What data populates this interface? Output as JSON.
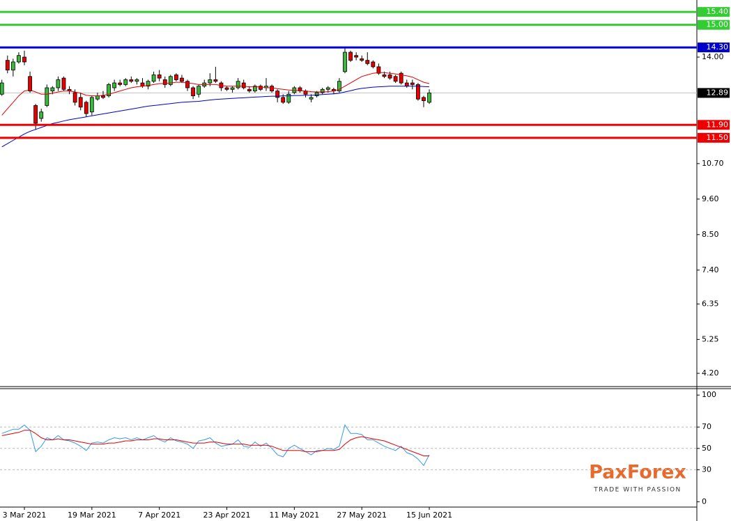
{
  "chart_data": [
    {
      "type": "candlestick",
      "categories": [
        null,
        null,
        null,
        null,
        "3 Mar 2021",
        null,
        null,
        null,
        null,
        null,
        null,
        null,
        null,
        null,
        null,
        null,
        "19 Mar 2021",
        null,
        null,
        null,
        null,
        null,
        null,
        null,
        null,
        null,
        null,
        null,
        "7 Apr 2021",
        null,
        null,
        null,
        null,
        null,
        null,
        null,
        null,
        null,
        null,
        null,
        "23 Apr 2021",
        null,
        null,
        null,
        null,
        null,
        null,
        null,
        null,
        null,
        null,
        null,
        "11 May 2021",
        null,
        null,
        null,
        null,
        null,
        null,
        null,
        null,
        null,
        null,
        null,
        "27 May 2021",
        null,
        null,
        null,
        null,
        null,
        null,
        null,
        null,
        null,
        null,
        null,
        "15 Jun 2021"
      ],
      "open": [
        12.85,
        13.9,
        13.6,
        13.85,
        14.0,
        13.4,
        12.5,
        12.1,
        12.5,
        12.95,
        13.05,
        13.35,
        13.0,
        12.9,
        12.75,
        12.6,
        12.3,
        12.7,
        12.8,
        12.8,
        13.05,
        13.2,
        13.15,
        13.3,
        13.25,
        13.2,
        13.1,
        13.25,
        13.45,
        13.3,
        13.15,
        13.45,
        13.35,
        13.25,
        13.05,
        12.85,
        13.1,
        13.2,
        13.3,
        13.2,
        13.05,
        13.0,
        13.05,
        13.2,
        13.0,
        12.95,
        13.1,
        13.05,
        13.1,
        12.95,
        12.75,
        12.6,
        12.9,
        13.05,
        12.95,
        12.7,
        12.8,
        12.9,
        13.0,
        13.0,
        12.95,
        13.55,
        14.15,
        14.05,
        13.95,
        13.9,
        13.85,
        13.7,
        13.45,
        13.45,
        13.4,
        13.5,
        13.2,
        13.2,
        13.15,
        12.75,
        12.6
      ],
      "high": [
        13.3,
        14.05,
        13.95,
        14.15,
        14.2,
        13.55,
        12.55,
        12.4,
        13.15,
        13.1,
        13.4,
        13.4,
        13.1,
        13.0,
        12.9,
        12.65,
        12.8,
        12.9,
        12.95,
        13.2,
        13.3,
        13.3,
        13.35,
        13.4,
        13.35,
        13.35,
        13.3,
        13.55,
        13.6,
        13.4,
        13.45,
        13.5,
        13.45,
        13.3,
        13.1,
        13.15,
        13.3,
        13.5,
        13.7,
        13.25,
        13.1,
        13.1,
        13.35,
        13.3,
        13.1,
        13.15,
        13.15,
        13.35,
        13.15,
        13.0,
        12.85,
        12.95,
        13.1,
        13.1,
        13.0,
        12.85,
        12.95,
        13.05,
        13.1,
        13.05,
        13.35,
        14.3,
        14.2,
        14.15,
        14.05,
        14.15,
        13.9,
        13.8,
        13.55,
        13.55,
        13.45,
        13.55,
        13.3,
        13.3,
        13.2,
        12.8,
        13.0
      ],
      "low": [
        12.8,
        13.5,
        13.4,
        13.8,
        13.75,
        12.9,
        11.75,
        12.0,
        12.45,
        12.85,
        12.95,
        12.95,
        12.85,
        12.5,
        12.35,
        12.15,
        12.2,
        12.65,
        12.7,
        12.75,
        12.95,
        13.1,
        13.1,
        13.2,
        13.15,
        13.05,
        13.0,
        13.2,
        13.25,
        13.05,
        13.1,
        13.25,
        13.2,
        12.95,
        12.7,
        12.75,
        13.05,
        13.1,
        13.2,
        12.95,
        12.95,
        12.9,
        13.0,
        13.0,
        12.9,
        12.9,
        12.95,
        12.95,
        12.9,
        12.6,
        12.55,
        12.55,
        12.85,
        12.9,
        12.75,
        12.6,
        12.75,
        12.85,
        12.9,
        12.85,
        12.9,
        13.5,
        13.85,
        13.9,
        13.85,
        13.75,
        13.65,
        13.45,
        13.35,
        13.3,
        13.2,
        13.15,
        13.05,
        13.0,
        12.65,
        12.45,
        12.55
      ],
      "close": [
        13.2,
        13.6,
        13.85,
        14.05,
        13.85,
        12.95,
        11.95,
        12.3,
        13.05,
        13.05,
        13.3,
        13.0,
        12.95,
        12.6,
        12.45,
        12.25,
        12.75,
        12.8,
        12.75,
        13.15,
        13.2,
        13.15,
        13.3,
        13.25,
        13.3,
        13.1,
        13.25,
        13.45,
        13.35,
        13.15,
        13.4,
        13.3,
        13.25,
        13.05,
        12.8,
        13.1,
        13.2,
        13.3,
        13.25,
        13.05,
        13.0,
        13.05,
        13.25,
        13.05,
        12.95,
        13.1,
        13.0,
        13.1,
        12.95,
        12.75,
        12.6,
        12.85,
        13.05,
        12.95,
        12.85,
        12.75,
        12.9,
        13.0,
        13.05,
        12.95,
        13.25,
        14.15,
        13.9,
        14.0,
        13.9,
        13.8,
        13.7,
        13.5,
        13.4,
        13.35,
        13.25,
        13.2,
        13.1,
        13.15,
        12.7,
        12.65,
        12.89
      ],
      "up_color": "#3cb83c",
      "down_color": "#e60000",
      "series": [
        {
          "color": "#e00000",
          "values": [
            12.2,
            12.4,
            12.6,
            12.8,
            12.95,
            12.98,
            12.92,
            12.85,
            12.85,
            12.88,
            12.92,
            12.95,
            12.95,
            12.92,
            12.88,
            12.82,
            12.8,
            12.8,
            12.82,
            12.85,
            12.9,
            12.95,
            13.0,
            13.05,
            13.08,
            13.1,
            13.12,
            13.15,
            13.18,
            13.18,
            13.2,
            13.22,
            13.22,
            13.2,
            13.18,
            13.15,
            13.15,
            13.15,
            13.15,
            13.12,
            13.1,
            13.1,
            13.1,
            13.1,
            13.08,
            13.08,
            13.08,
            13.05,
            13.05,
            13.02,
            13.0,
            12.98,
            12.97,
            12.96,
            12.95,
            12.93,
            12.92,
            12.92,
            12.93,
            12.95,
            13.0,
            13.1,
            13.2,
            13.3,
            13.4,
            13.45,
            13.5,
            13.52,
            13.52,
            13.5,
            13.48,
            13.45,
            13.42,
            13.38,
            13.3,
            13.22,
            13.18
          ]
        },
        {
          "color": "#0000c8",
          "values": [
            11.22,
            11.32,
            11.42,
            11.52,
            11.62,
            11.7,
            11.76,
            11.82,
            11.88,
            11.94,
            11.98,
            12.02,
            12.06,
            12.09,
            12.12,
            12.15,
            12.18,
            12.21,
            12.24,
            12.27,
            12.3,
            12.33,
            12.36,
            12.39,
            12.42,
            12.45,
            12.48,
            12.5,
            12.52,
            12.54,
            12.56,
            12.58,
            12.6,
            12.61,
            12.62,
            12.63,
            12.65,
            12.67,
            12.69,
            12.7,
            12.71,
            12.72,
            12.73,
            12.74,
            12.75,
            12.76,
            12.77,
            12.78,
            12.79,
            12.79,
            12.8,
            12.8,
            12.81,
            12.81,
            12.82,
            12.82,
            12.83,
            12.84,
            12.85,
            12.86,
            12.88,
            12.92,
            12.96,
            13.0,
            13.03,
            13.05,
            13.07,
            13.08,
            13.09,
            13.1,
            13.1,
            13.1,
            13.1,
            13.1,
            13.1,
            13.09,
            13.08
          ]
        }
      ],
      "ylim": [
        3.79,
        15.77
      ],
      "yticks": [
        {
          "value": 14,
          "label": "14.00"
        },
        {
          "value": 10.7,
          "label": "10.70"
        },
        {
          "value": 9.6,
          "label": "9.60"
        },
        {
          "value": 8.5,
          "label": "8.50"
        },
        {
          "value": 7.4,
          "label": "7.40"
        },
        6.35,
        5.25,
        {
          "value": 4.2,
          "label": "4.20"
        }
      ],
      "levels": [
        {
          "value": 15.4,
          "label": "15.40",
          "color": "#33cc33"
        },
        {
          "value": 15,
          "label": "15.00",
          "color": "#33cc33"
        },
        {
          "value": 14.3,
          "label": "14.30",
          "color": "#0000cc"
        },
        {
          "value": 11.9,
          "label": "11.90",
          "color": "#ee0000"
        },
        {
          "value": 11.5,
          "label": "11.50",
          "color": "#ee0000"
        }
      ],
      "last_price": 12.89
    },
    {
      "type": "line",
      "series": [
        {
          "color": "#3399ee",
          "values": [
            64,
            66,
            68,
            68,
            72,
            67,
            47,
            52,
            60,
            58,
            62,
            58,
            57,
            55,
            52,
            48,
            55,
            56,
            55,
            58,
            60,
            59,
            60,
            58,
            60,
            58,
            60,
            62,
            58,
            56,
            60,
            57,
            56,
            54,
            50,
            57,
            58,
            60,
            55,
            52,
            53,
            54,
            58,
            52,
            51,
            56,
            52,
            55,
            50,
            44,
            42,
            50,
            53,
            50,
            47,
            44,
            48,
            48,
            50,
            49,
            52,
            72,
            64,
            64,
            63,
            58,
            58,
            55,
            52,
            50,
            48,
            52,
            46,
            44,
            40,
            34,
            44
          ]
        },
        {
          "color": "#e00000",
          "values": [
            62,
            63,
            64,
            65,
            67,
            67,
            64,
            60,
            58,
            58,
            59,
            58,
            58,
            57,
            56,
            55,
            54,
            54,
            54,
            55,
            55,
            56,
            57,
            57,
            58,
            58,
            58,
            59,
            59,
            58,
            58,
            58,
            57,
            56,
            55,
            55,
            55,
            56,
            56,
            55,
            54,
            54,
            54,
            54,
            53,
            53,
            53,
            53,
            52,
            50,
            48,
            48,
            48,
            48,
            47,
            47,
            47,
            48,
            48,
            48,
            49,
            54,
            58,
            60,
            61,
            60,
            59,
            58,
            57,
            55,
            53,
            51,
            49,
            47,
            45,
            43,
            43
          ]
        }
      ],
      "ylim": [
        -5,
        106
      ],
      "yticks": [
        100,
        70,
        50,
        30,
        0
      ],
      "reference_lines": [
        30,
        50,
        70
      ]
    }
  ],
  "logo": {
    "brand": "PaxForex",
    "tagline": "TRADE WITH PASSION"
  }
}
